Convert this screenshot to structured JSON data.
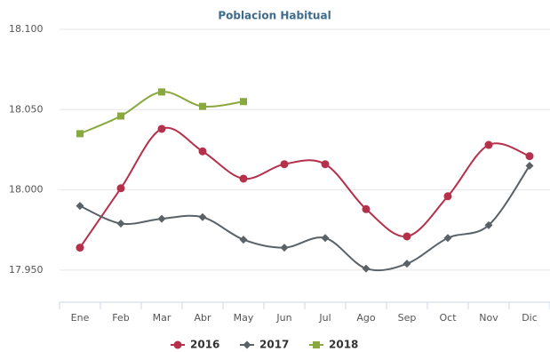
{
  "chart_data": {
    "type": "line",
    "title": "Poblacion Habitual",
    "categories": [
      "Ene",
      "Feb",
      "Mar",
      "Abr",
      "May",
      "Jun",
      "Jul",
      "Ago",
      "Sep",
      "Oct",
      "Nov",
      "Dic"
    ],
    "series": [
      {
        "name": "2016",
        "color": "#b5304a",
        "marker": "circle",
        "values": [
          17964,
          18001,
          18038,
          18024,
          18007,
          18016,
          18016,
          17988,
          17971,
          17996,
          18028,
          18021
        ]
      },
      {
        "name": "2017",
        "color": "#5a6268",
        "marker": "diamond",
        "values": [
          17990,
          17979,
          17982,
          17983,
          17969,
          17964,
          17970,
          17951,
          17954,
          17970,
          17978,
          18015
        ]
      },
      {
        "name": "2018",
        "color": "#8aa840",
        "marker": "square",
        "values": [
          18035,
          18046,
          18061,
          18052,
          18055,
          null,
          null,
          null,
          null,
          null,
          null,
          null
        ]
      }
    ],
    "ylim": [
      17930,
      18100
    ],
    "yticks": [
      {
        "value": 17950,
        "label": "17.950"
      },
      {
        "value": 18000,
        "label": "18.000"
      },
      {
        "value": 18050,
        "label": "18.050"
      },
      {
        "value": 18100,
        "label": "18.100"
      }
    ],
    "grid": true,
    "legend": "bottom"
  }
}
